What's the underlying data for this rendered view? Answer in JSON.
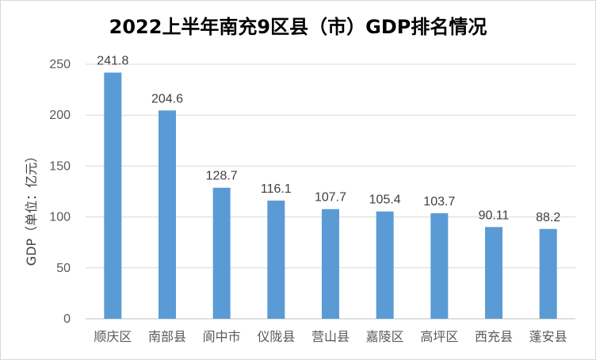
{
  "chart_data": {
    "type": "bar",
    "title": "2022上半年南充9区县（市）GDP排名情况",
    "xlabel": "",
    "ylabel": "GDP（单位：亿元）",
    "categories": [
      "顺庆区",
      "南部县",
      "阆中市",
      "仪陇县",
      "营山县",
      "嘉陵区",
      "高坪区",
      "西充县",
      "蓬安县"
    ],
    "values": [
      241.8,
      204.6,
      128.7,
      116.1,
      107.7,
      105.4,
      103.7,
      90.11,
      88.2
    ],
    "data_labels": [
      "241.8",
      "204.6",
      "128.7",
      "116.1",
      "107.7",
      "105.4",
      "103.7",
      "90.11",
      "88.2"
    ],
    "ylim": [
      0,
      250
    ],
    "yticks": [
      "0",
      "50",
      "100",
      "150",
      "200",
      "250"
    ],
    "grid": true,
    "legend": "none",
    "colors": {
      "bar": "#5b9bd5",
      "grid": "#d9d9d9",
      "axis": "#bfbfbf"
    }
  }
}
